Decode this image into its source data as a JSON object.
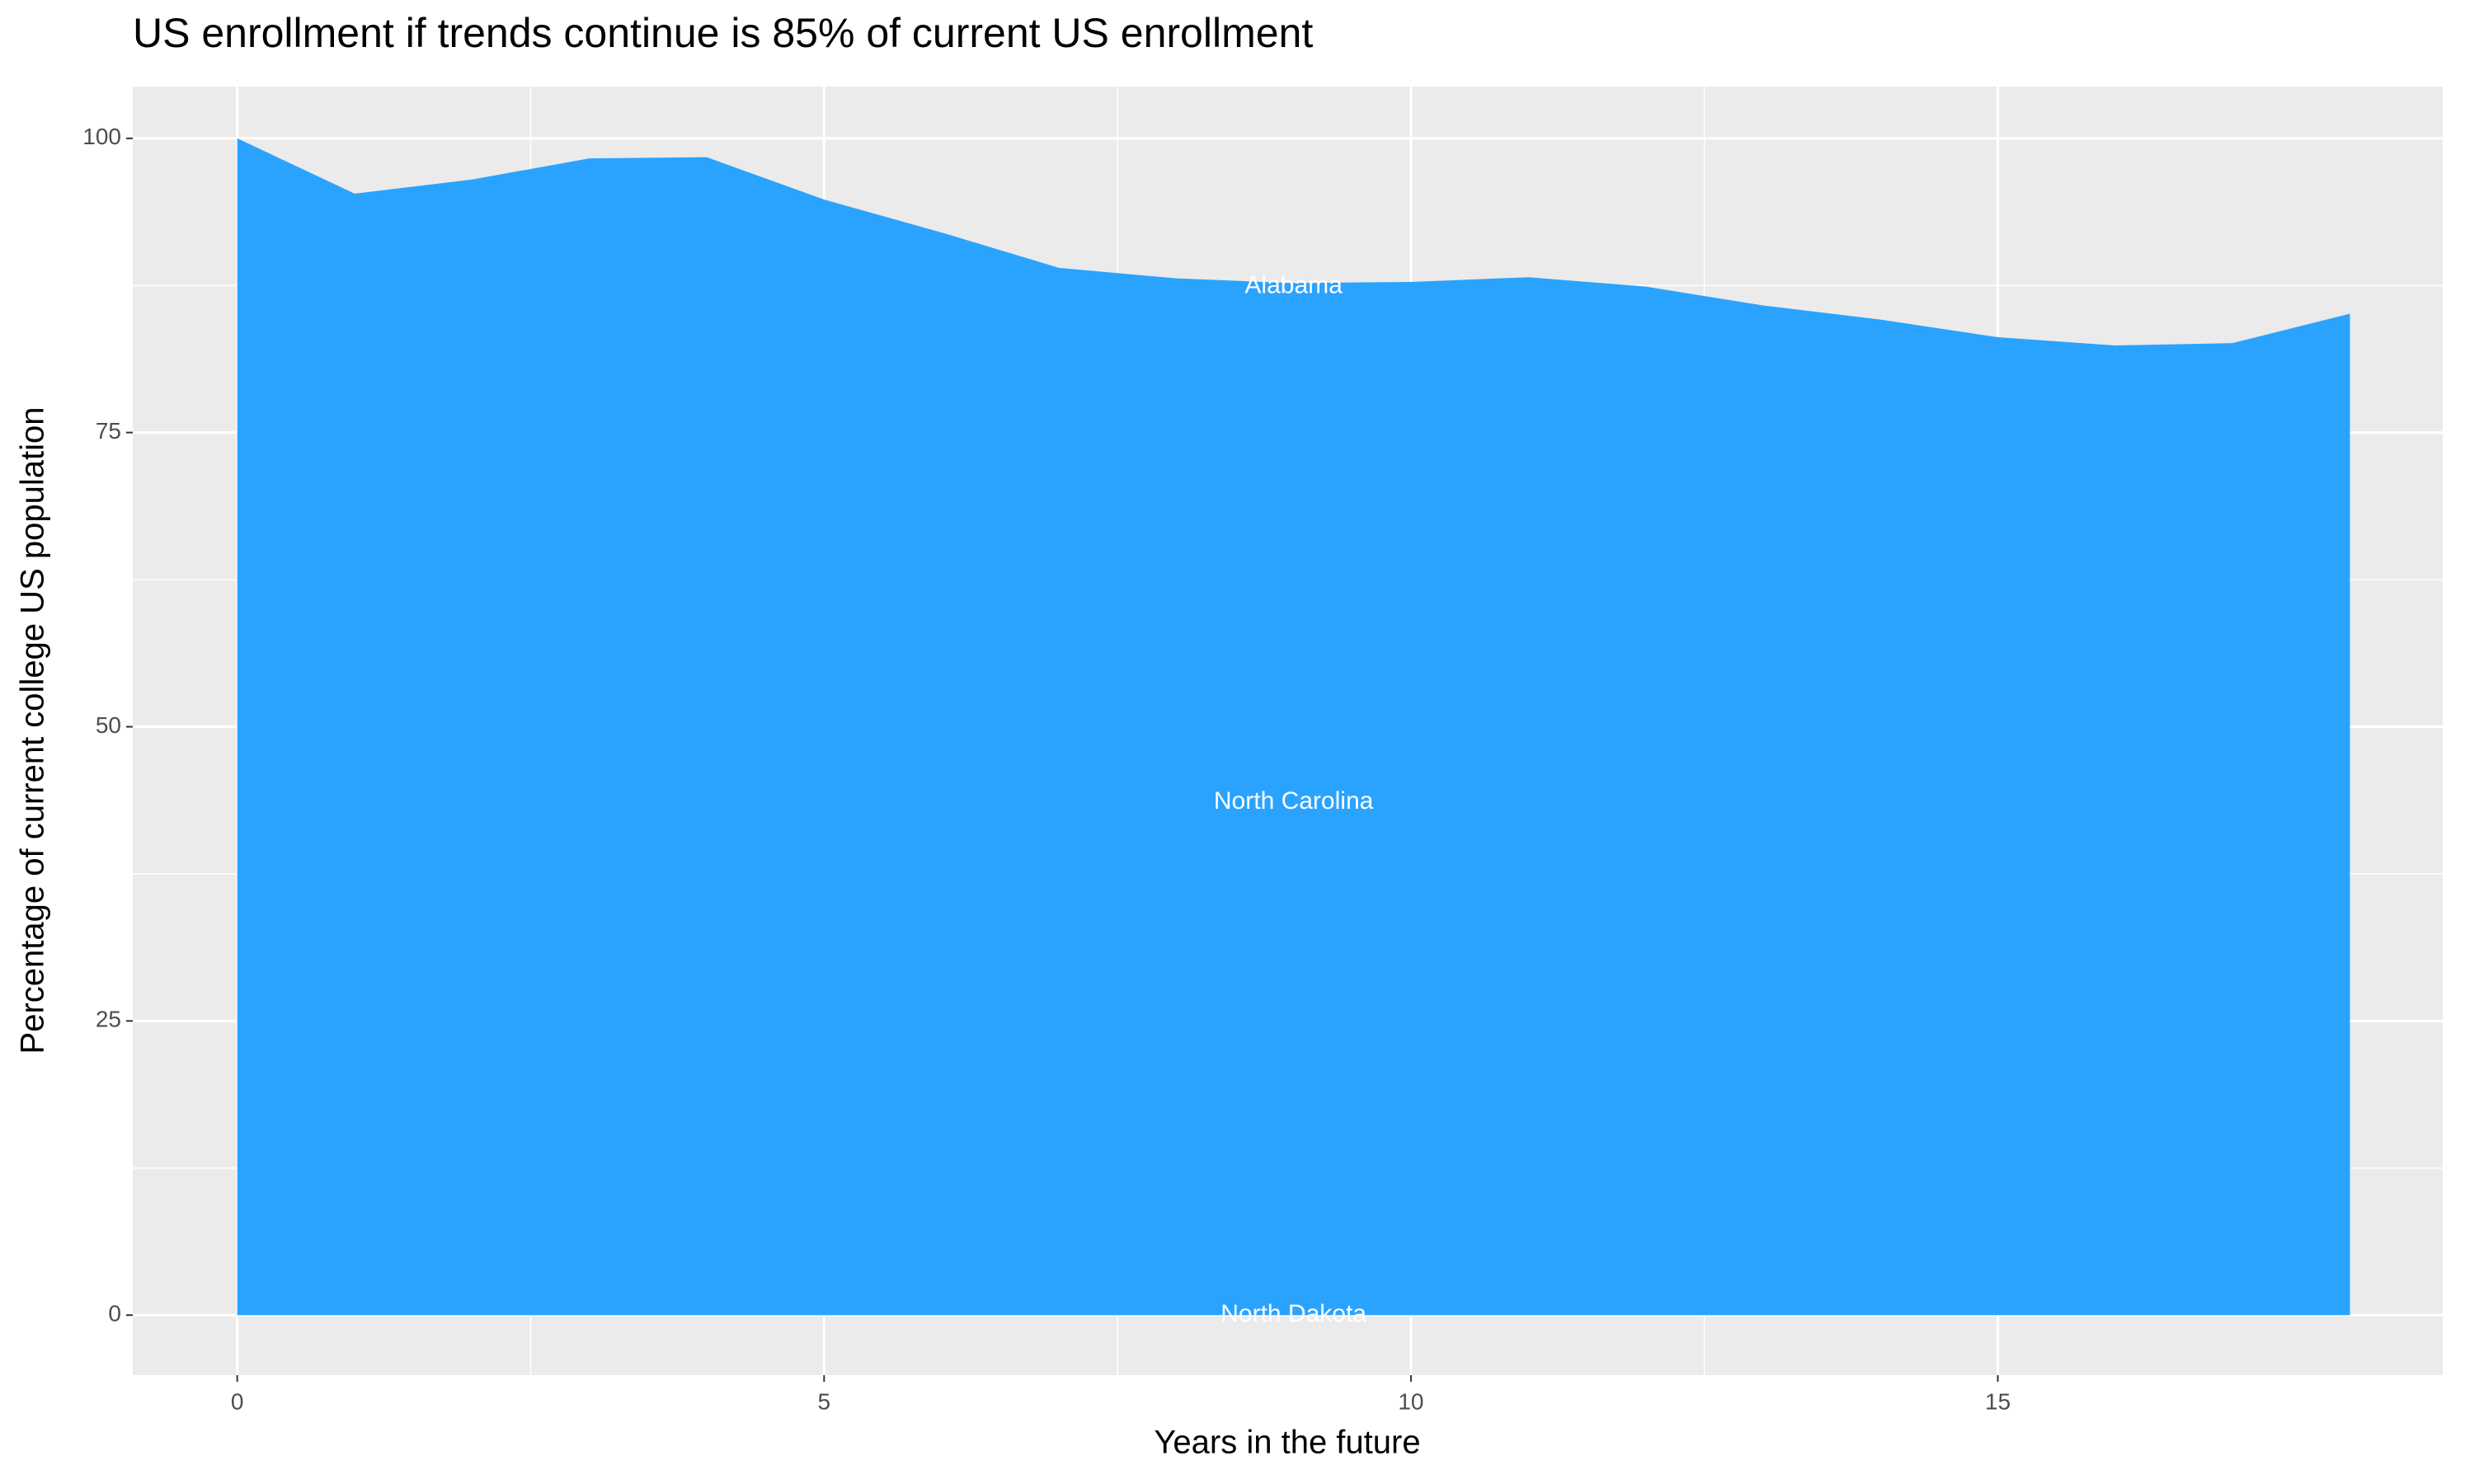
{
  "chart_data": {
    "type": "area",
    "title": "US enrollment if trends continue is 85% of current US enrollment",
    "x_label": "Years in the future",
    "y_label": "Percentage of current college US population",
    "x": [
      0,
      1,
      2,
      3,
      4,
      5,
      6,
      7,
      8,
      9,
      10,
      11,
      12,
      13,
      14,
      15,
      16,
      17,
      18
    ],
    "values": [
      100,
      95.3,
      96.5,
      98.3,
      98.4,
      94.8,
      92.0,
      89.0,
      88.1,
      87.7,
      87.8,
      88.2,
      87.4,
      85.8,
      84.6,
      83.1,
      82.4,
      82.6,
      85.1
    ],
    "color": "#2aa3ff",
    "xlim": [
      -0.89,
      18.79
    ],
    "xticks": [
      0,
      5,
      10,
      15
    ],
    "ylim": [
      -5.1,
      104.4
    ],
    "yticks": [
      0,
      25,
      50,
      75,
      100
    ],
    "grid": true,
    "annotations": [
      {
        "text": "Alabama",
        "x": 9,
        "y": 87.4
      },
      {
        "text": "North Carolina",
        "x": 9,
        "y": 43.6
      },
      {
        "text": "North Dakota",
        "x": 9,
        "y": 0
      }
    ]
  }
}
